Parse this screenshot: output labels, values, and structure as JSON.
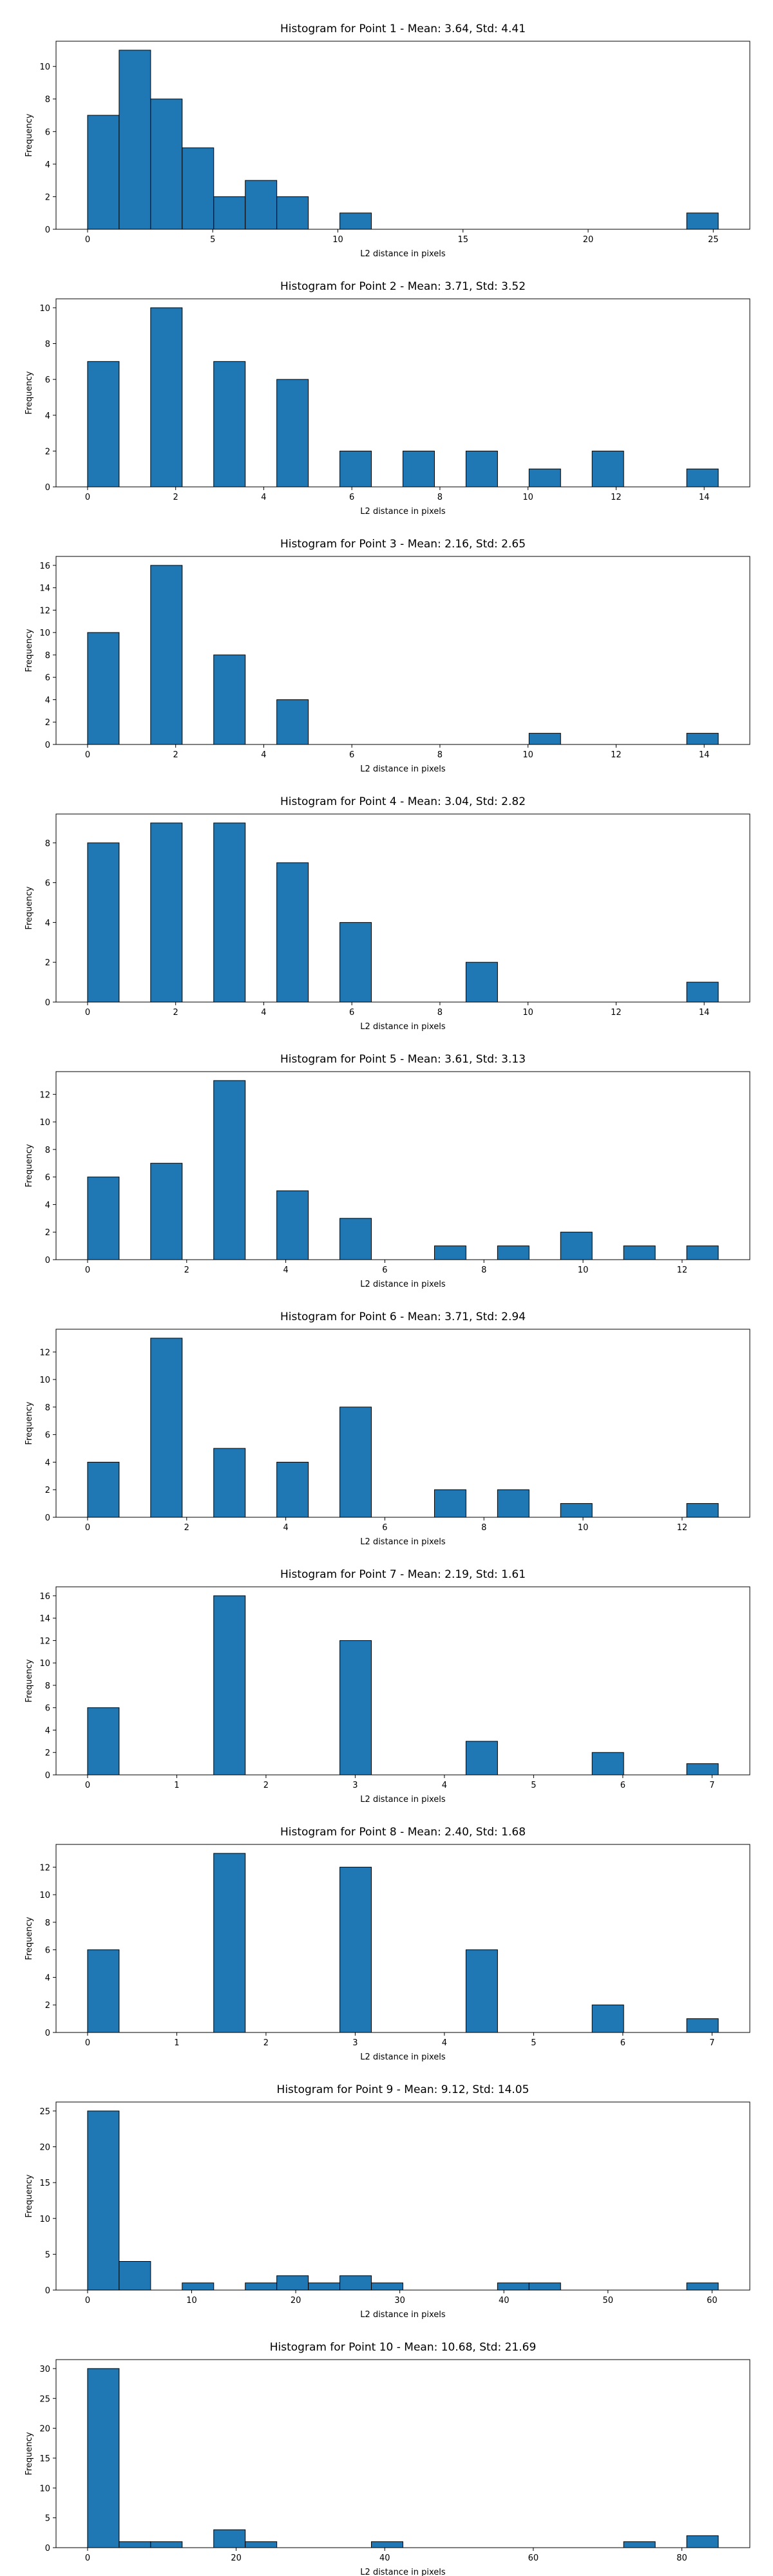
{
  "chart_data": [
    {
      "type": "histogram",
      "title": "Histogram for Point 1 - Mean: 3.64, Std: 4.41",
      "xlabel": "L2 distance in pixels",
      "ylabel": "Frequency",
      "color": "#1f77b4",
      "bins": [
        0,
        1.26,
        2.52,
        3.78,
        5.04,
        6.3,
        7.56,
        8.82,
        10.08,
        11.34,
        12.6,
        13.86,
        15.12,
        16.38,
        17.64,
        18.9,
        20.16,
        21.42,
        22.68,
        23.94,
        25.2
      ],
      "values": [
        7,
        11,
        8,
        5,
        2,
        3,
        2,
        0,
        1,
        0,
        0,
        0,
        0,
        0,
        0,
        0,
        0,
        0,
        0,
        1
      ],
      "xlim": [
        -1.26,
        26.46
      ],
      "ylim": [
        0,
        11.55
      ],
      "xticks": [
        0,
        5,
        10,
        15,
        20,
        25
      ],
      "yticks": [
        0,
        2,
        4,
        6,
        8,
        10
      ]
    },
    {
      "type": "histogram",
      "title": "Histogram for Point 2 - Mean: 3.71, Std: 3.52",
      "xlabel": "L2 distance in pixels",
      "ylabel": "Frequency",
      "color": "#1f77b4",
      "bins": [
        0,
        0.716,
        1.432,
        2.148,
        2.864,
        3.58,
        4.296,
        5.012,
        5.728,
        6.444,
        7.16,
        7.876,
        8.592,
        9.308,
        10.024,
        10.74,
        11.456,
        12.172,
        12.888,
        13.604,
        14.32
      ],
      "values": [
        7,
        0,
        10,
        0,
        7,
        0,
        6,
        0,
        2,
        0,
        2,
        0,
        2,
        0,
        1,
        0,
        2,
        0,
        0,
        1
      ],
      "xlim": [
        -0.716,
        15.036
      ],
      "ylim": [
        0,
        10.5
      ],
      "xticks": [
        0,
        2,
        4,
        6,
        8,
        10,
        12,
        14
      ],
      "yticks": [
        0,
        2,
        4,
        6,
        8,
        10
      ]
    },
    {
      "type": "histogram",
      "title": "Histogram for Point 3 - Mean: 2.16, Std: 2.65",
      "xlabel": "L2 distance in pixels",
      "ylabel": "Frequency",
      "color": "#1f77b4",
      "bins": [
        0,
        0.716,
        1.432,
        2.148,
        2.864,
        3.58,
        4.296,
        5.012,
        5.728,
        6.444,
        7.16,
        7.876,
        8.592,
        9.308,
        10.024,
        10.74,
        11.456,
        12.172,
        12.888,
        13.604,
        14.32
      ],
      "values": [
        10,
        0,
        16,
        0,
        8,
        0,
        4,
        0,
        0,
        0,
        0,
        0,
        0,
        0,
        1,
        0,
        0,
        0,
        0,
        1
      ],
      "xlim": [
        -0.716,
        15.036
      ],
      "ylim": [
        0,
        16.8
      ],
      "xticks": [
        0,
        2,
        4,
        6,
        8,
        10,
        12,
        14
      ],
      "yticks": [
        0,
        2,
        4,
        6,
        8,
        10,
        12,
        14,
        16
      ]
    },
    {
      "type": "histogram",
      "title": "Histogram for Point 4 - Mean: 3.04, Std: 2.82",
      "xlabel": "L2 distance in pixels",
      "ylabel": "Frequency",
      "color": "#1f77b4",
      "bins": [
        0,
        0.716,
        1.432,
        2.148,
        2.864,
        3.58,
        4.296,
        5.012,
        5.728,
        6.444,
        7.16,
        7.876,
        8.592,
        9.308,
        10.024,
        10.74,
        11.456,
        12.172,
        12.888,
        13.604,
        14.32
      ],
      "values": [
        8,
        0,
        9,
        0,
        9,
        0,
        7,
        0,
        4,
        0,
        0,
        0,
        2,
        0,
        0,
        0,
        0,
        0,
        0,
        1
      ],
      "xlim": [
        -0.716,
        15.036
      ],
      "ylim": [
        0,
        9.45
      ],
      "xticks": [
        0,
        2,
        4,
        6,
        8,
        10,
        12,
        14
      ],
      "yticks": [
        0,
        2,
        4,
        6,
        8
      ]
    },
    {
      "type": "histogram",
      "title": "Histogram for Point 5 - Mean: 3.61, Std: 3.13",
      "xlabel": "L2 distance in pixels",
      "ylabel": "Frequency",
      "color": "#1f77b4",
      "bins": [
        0,
        0.6365,
        1.273,
        1.9095,
        2.546,
        3.1825,
        3.819,
        4.4555,
        5.092,
        5.7285,
        6.365,
        7.0015,
        7.638,
        8.2745,
        8.911,
        9.5475,
        10.184,
        10.8205,
        11.457,
        12.0935,
        12.73
      ],
      "values": [
        6,
        0,
        7,
        0,
        13,
        0,
        5,
        0,
        3,
        0,
        0,
        1,
        0,
        1,
        0,
        2,
        0,
        1,
        0,
        1
      ],
      "xlim": [
        -0.6365,
        13.3665
      ],
      "ylim": [
        0,
        13.65
      ],
      "xticks": [
        0,
        2,
        4,
        6,
        8,
        10,
        12
      ],
      "yticks": [
        0,
        2,
        4,
        6,
        8,
        10,
        12
      ]
    },
    {
      "type": "histogram",
      "title": "Histogram for Point 6 - Mean: 3.71, Std: 2.94",
      "xlabel": "L2 distance in pixels",
      "ylabel": "Frequency",
      "color": "#1f77b4",
      "bins": [
        0,
        0.6365,
        1.273,
        1.9095,
        2.546,
        3.1825,
        3.819,
        4.4555,
        5.092,
        5.7285,
        6.365,
        7.0015,
        7.638,
        8.2745,
        8.911,
        9.5475,
        10.184,
        10.8205,
        11.457,
        12.0935,
        12.73
      ],
      "values": [
        4,
        0,
        13,
        0,
        5,
        0,
        4,
        0,
        8,
        0,
        0,
        2,
        0,
        2,
        0,
        1,
        0,
        0,
        0,
        1
      ],
      "xlim": [
        -0.6365,
        13.3665
      ],
      "ylim": [
        0,
        13.65
      ],
      "xticks": [
        0,
        2,
        4,
        6,
        8,
        10,
        12
      ],
      "yticks": [
        0,
        2,
        4,
        6,
        8,
        10,
        12
      ]
    },
    {
      "type": "histogram",
      "title": "Histogram for Point 7 - Mean: 2.19, Std: 1.61",
      "xlabel": "L2 distance in pixels",
      "ylabel": "Frequency",
      "color": "#1f77b4",
      "bins": [
        0,
        0.3535,
        0.707,
        1.0605,
        1.414,
        1.7675,
        2.121,
        2.4745,
        2.828,
        3.1815,
        3.535,
        3.8885,
        4.242,
        4.5955,
        4.949,
        5.3025,
        5.656,
        6.0095,
        6.363,
        6.7165,
        7.07
      ],
      "values": [
        6,
        0,
        0,
        0,
        16,
        0,
        0,
        0,
        12,
        0,
        0,
        0,
        3,
        0,
        0,
        0,
        2,
        0,
        0,
        1
      ],
      "xlim": [
        -0.3535,
        7.4235
      ],
      "ylim": [
        0,
        16.8
      ],
      "xticks": [
        0,
        1,
        2,
        3,
        4,
        5,
        6,
        7
      ],
      "yticks": [
        0,
        2,
        4,
        6,
        8,
        10,
        12,
        14,
        16
      ]
    },
    {
      "type": "histogram",
      "title": "Histogram for Point 8 - Mean: 2.40, Std: 1.68",
      "xlabel": "L2 distance in pixels",
      "ylabel": "Frequency",
      "color": "#1f77b4",
      "bins": [
        0,
        0.3535,
        0.707,
        1.0605,
        1.414,
        1.7675,
        2.121,
        2.4745,
        2.828,
        3.1815,
        3.535,
        3.8885,
        4.242,
        4.5955,
        4.949,
        5.3025,
        5.656,
        6.0095,
        6.363,
        6.7165,
        7.07
      ],
      "values": [
        6,
        0,
        0,
        0,
        13,
        0,
        0,
        0,
        12,
        0,
        0,
        0,
        6,
        0,
        0,
        0,
        2,
        0,
        0,
        1
      ],
      "xlim": [
        -0.3535,
        7.4235
      ],
      "ylim": [
        0,
        13.65
      ],
      "xticks": [
        0,
        1,
        2,
        3,
        4,
        5,
        6,
        7
      ],
      "yticks": [
        0,
        2,
        4,
        6,
        8,
        10,
        12
      ]
    },
    {
      "type": "histogram",
      "title": "Histogram for Point 9 - Mean: 9.12, Std: 14.05",
      "xlabel": "L2 distance in pixels",
      "ylabel": "Frequency",
      "color": "#1f77b4",
      "bins": [
        0,
        3.03,
        6.06,
        9.09,
        12.12,
        15.15,
        18.18,
        21.21,
        24.24,
        27.27,
        30.3,
        33.33,
        36.36,
        39.39,
        42.42,
        45.45,
        48.48,
        51.51,
        54.54,
        57.57,
        60.6
      ],
      "values": [
        25,
        4,
        0,
        1,
        0,
        1,
        2,
        1,
        2,
        1,
        0,
        0,
        0,
        1,
        1,
        0,
        0,
        0,
        0,
        1
      ],
      "xlim": [
        -3.03,
        63.63
      ],
      "ylim": [
        0,
        26.25
      ],
      "xticks": [
        0,
        10,
        20,
        30,
        40,
        50,
        60
      ],
      "yticks": [
        0,
        5,
        10,
        15,
        20,
        25
      ]
    },
    {
      "type": "histogram",
      "title": "Histogram for Point 10 - Mean: 10.68, Std: 21.69",
      "xlabel": "L2 distance in pixels",
      "ylabel": "Frequency",
      "color": "#1f77b4",
      "bins": [
        0,
        4.245,
        8.49,
        12.735,
        16.98,
        21.225,
        25.47,
        29.715,
        33.96,
        38.205,
        42.45,
        46.695,
        50.94,
        55.185,
        59.43,
        63.675,
        67.92,
        72.165,
        76.41,
        80.655,
        84.9
      ],
      "values": [
        30,
        1,
        1,
        0,
        3,
        1,
        0,
        0,
        0,
        1,
        0,
        0,
        0,
        0,
        0,
        0,
        0,
        1,
        0,
        2
      ],
      "xlim": [
        -4.245,
        89.145
      ],
      "ylim": [
        0,
        31.5
      ],
      "xticks": [
        0,
        20,
        40,
        60,
        80
      ],
      "yticks": [
        0,
        5,
        10,
        15,
        20,
        25,
        30
      ]
    }
  ]
}
